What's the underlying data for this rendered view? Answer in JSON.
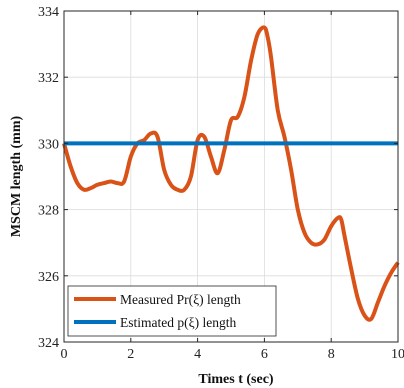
{
  "chart_data": {
    "type": "line",
    "xlabel": "Times t (sec)",
    "ylabel": "MSCM length (mm)",
    "xlim": [
      0,
      10
    ],
    "ylim": [
      324,
      334
    ],
    "xticks": [
      0,
      2,
      4,
      6,
      8,
      10
    ],
    "xtick_labels": [
      "0",
      "2",
      "4",
      "6",
      "8",
      "10"
    ],
    "yticks": [
      324,
      326,
      328,
      330,
      332,
      334
    ],
    "ytick_labels": [
      "324",
      "326",
      "328",
      "330",
      "332",
      "334"
    ],
    "grid": true,
    "legend_position": "bottom-left",
    "series": [
      {
        "name": "Measured Pr(ξ) length",
        "color": "#d95319",
        "x": [
          0,
          0.2,
          0.4,
          0.6,
          0.8,
          1.0,
          1.2,
          1.4,
          1.6,
          1.8,
          2.0,
          2.2,
          2.4,
          2.6,
          2.8,
          3.0,
          3.2,
          3.4,
          3.6,
          3.8,
          4.0,
          4.2,
          4.4,
          4.6,
          4.8,
          5.0,
          5.2,
          5.4,
          5.6,
          5.8,
          6.0,
          6.1,
          6.2,
          6.4,
          6.6,
          6.8,
          7.0,
          7.2,
          7.4,
          7.6,
          7.8,
          8.0,
          8.2,
          8.3,
          8.4,
          8.6,
          8.8,
          9.0,
          9.2,
          9.4,
          9.6,
          9.8,
          10.0
        ],
        "y": [
          330.0,
          329.3,
          328.8,
          328.6,
          328.65,
          328.75,
          328.8,
          328.85,
          328.8,
          328.85,
          329.6,
          330.0,
          330.1,
          330.3,
          330.2,
          329.2,
          328.75,
          328.6,
          328.6,
          329.0,
          330.1,
          330.2,
          329.6,
          329.1,
          329.8,
          330.7,
          330.8,
          331.4,
          332.5,
          333.3,
          333.5,
          333.2,
          332.6,
          331.0,
          330.2,
          329.2,
          328.0,
          327.3,
          327.0,
          326.95,
          327.1,
          327.5,
          327.75,
          327.7,
          327.2,
          326.2,
          325.3,
          324.8,
          324.7,
          325.2,
          325.7,
          326.1,
          326.4
        ]
      },
      {
        "name": "Estimated p(ξ) length",
        "color": "#0072bd",
        "x": [
          0,
          10
        ],
        "y": [
          330,
          330
        ]
      }
    ]
  }
}
